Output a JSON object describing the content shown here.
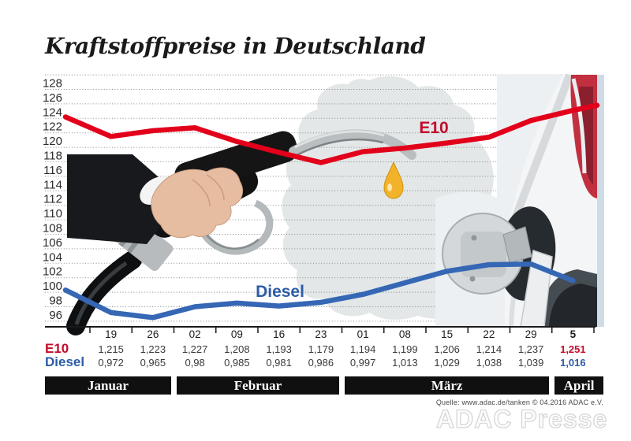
{
  "title": "Kraftstoffpreise in Deutschland",
  "chart_data": {
    "type": "line",
    "title": "Kraftstoffpreise in Deutschland",
    "grid": "dotted-horizontal",
    "ylim": [
      96,
      130
    ],
    "y_ticks": [
      96,
      98,
      100,
      102,
      104,
      106,
      108,
      110,
      112,
      114,
      116,
      118,
      120,
      122,
      124,
      126,
      128
    ],
    "x_tick_labels": [
      "19",
      "26",
      "02",
      "09",
      "16",
      "23",
      "01",
      "08",
      "15",
      "22",
      "29",
      "5"
    ],
    "months": [
      {
        "label": "Januar",
        "cols": [
          0,
          1
        ]
      },
      {
        "label": "Februar",
        "cols": [
          2,
          5
        ]
      },
      {
        "label": "März",
        "cols": [
          6,
          10
        ]
      },
      {
        "label": "April",
        "cols": [
          11,
          11
        ]
      }
    ],
    "series": [
      {
        "name": "E10",
        "line_color": "#e2001a",
        "label_color": "#c30c2c",
        "values_display": [
          "1,215",
          "1,223",
          "1,227",
          "1,208",
          "1,193",
          "1,179",
          "1,194",
          "1,199",
          "1,206",
          "1,214",
          "1,237",
          "1,251"
        ],
        "values_cents": [
          121.5,
          122.3,
          122.7,
          120.8,
          119.3,
          117.9,
          119.4,
          119.9,
          120.6,
          121.4,
          123.7,
          125.1
        ],
        "lead_in_cents": 124.2,
        "tail_cents": 125.8
      },
      {
        "name": "Diesel",
        "line_color": "#3567b5",
        "label_color": "#2d5ca6",
        "values_display": [
          "0,972",
          "0,965",
          "0,98",
          "0,985",
          "0,981",
          "0,986",
          "0,997",
          "1,013",
          "1,029",
          "1,038",
          "1,039",
          "1,016"
        ],
        "values_cents": [
          97.2,
          96.5,
          98.0,
          98.5,
          98.1,
          98.6,
          99.7,
          101.3,
          102.9,
          103.8,
          103.9,
          101.6
        ],
        "lead_in_cents": 100.3,
        "tail_cents": null
      }
    ]
  },
  "source": {
    "text": "Quelle: www.adac.de/tanken   © 04.2016   ADAC e.V."
  },
  "watermark": "ADAC Presse",
  "illustrations": [
    "germany-map",
    "car-rear-with-open-fuel-door",
    "hand-with-fuel-nozzle",
    "fuel-drop"
  ]
}
